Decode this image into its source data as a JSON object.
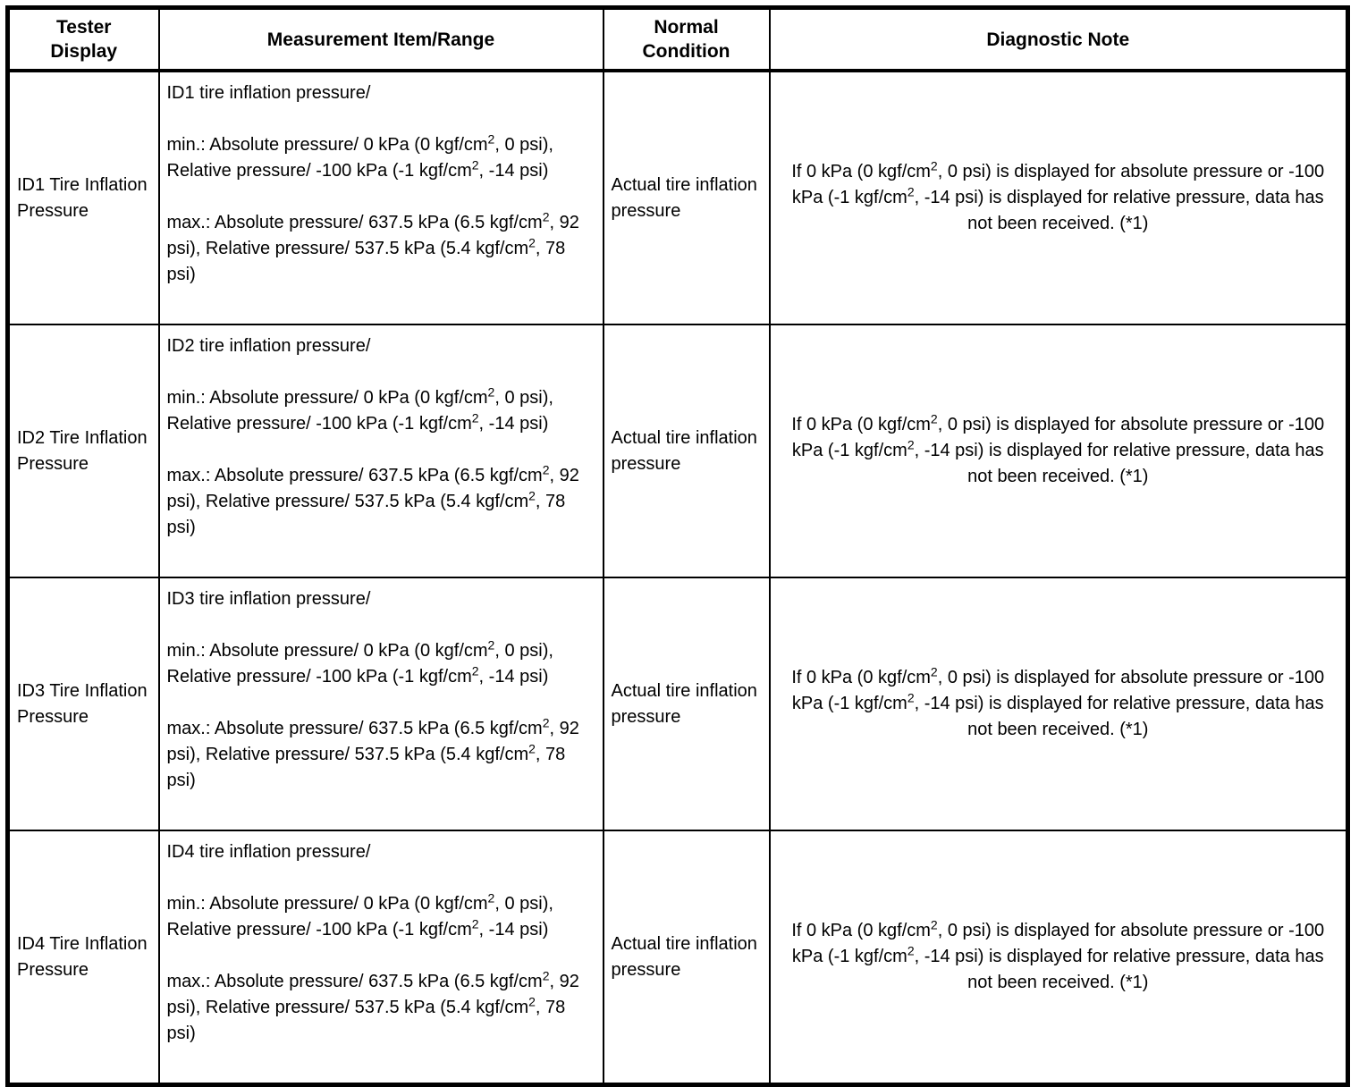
{
  "table": {
    "headers": [
      "Tester Display",
      "Measurement Item/Range",
      "Normal Condition",
      "Diagnostic Note"
    ],
    "rows": [
      {
        "tester_display": "ID1 Tire Inflation Pressure",
        "measurement": {
          "title": "ID1 tire inflation pressure/",
          "min": "min.: Absolute pressure/ 0 kPa (0 kgf/cm^2, 0 psi), Relative pressure/ -100 kPa (-1 kgf/cm^2, -14 psi)",
          "max": "max.: Absolute pressure/ 637.5 kPa (6.5 kgf/cm^2, 92 psi), Relative pressure/ 537.5 kPa (5.4 kgf/cm^2, 78 psi)"
        },
        "normal_condition": "Actual tire inflation pressure",
        "diagnostic_note": "If 0 kPa (0 kgf/cm^2, 0 psi) is displayed for absolute pressure or -100 kPa (-1 kgf/cm^2, -14 psi) is displayed for relative pressure, data has not been received. (*1)"
      },
      {
        "tester_display": "ID2 Tire Inflation Pressure",
        "measurement": {
          "title": "ID2 tire inflation pressure/",
          "min": "min.: Absolute pressure/ 0 kPa (0 kgf/cm^2, 0 psi), Relative pressure/ -100 kPa (-1 kgf/cm^2, -14 psi)",
          "max": "max.: Absolute pressure/ 637.5 kPa (6.5 kgf/cm^2, 92 psi), Relative pressure/ 537.5 kPa (5.4 kgf/cm^2, 78 psi)"
        },
        "normal_condition": "Actual tire inflation pressure",
        "diagnostic_note": "If 0 kPa (0 kgf/cm^2, 0 psi) is displayed for absolute pressure or -100 kPa (-1 kgf/cm^2, -14 psi) is displayed for relative pressure, data has not been received. (*1)"
      },
      {
        "tester_display": "ID3 Tire Inflation Pressure",
        "measurement": {
          "title": "ID3 tire inflation pressure/",
          "min": "min.: Absolute pressure/ 0 kPa (0 kgf/cm^2, 0 psi), Relative pressure/ -100 kPa (-1 kgf/cm^2, -14 psi)",
          "max": "max.: Absolute pressure/ 637.5 kPa (6.5 kgf/cm^2, 92 psi), Relative pressure/ 537.5 kPa (5.4 kgf/cm^2, 78 psi)"
        },
        "normal_condition": "Actual tire inflation pressure",
        "diagnostic_note": "If 0 kPa (0 kgf/cm^2, 0 psi) is displayed for absolute pressure or -100 kPa (-1 kgf/cm^2, -14 psi) is displayed for relative pressure, data has not been received. (*1)"
      },
      {
        "tester_display": "ID4 Tire Inflation Pressure",
        "measurement": {
          "title": "ID4 tire inflation pressure/",
          "min": "min.: Absolute pressure/ 0 kPa (0 kgf/cm^2, 0 psi), Relative pressure/ -100 kPa (-1 kgf/cm^2, -14 psi)",
          "max": "max.: Absolute pressure/ 637.5 kPa (6.5 kgf/cm^2, 92 psi), Relative pressure/ 537.5 kPa (5.4 kgf/cm^2, 78 psi)"
        },
        "normal_condition": "Actual tire inflation pressure",
        "diagnostic_note": "If 0 kPa (0 kgf/cm^2, 0 psi) is displayed for absolute pressure or -100 kPa (-1 kgf/cm^2, -14 psi) is displayed for relative pressure, data has not been received. (*1)"
      }
    ],
    "colors": {
      "border": "#000000",
      "text": "#000000",
      "background": "#ffffff"
    }
  }
}
